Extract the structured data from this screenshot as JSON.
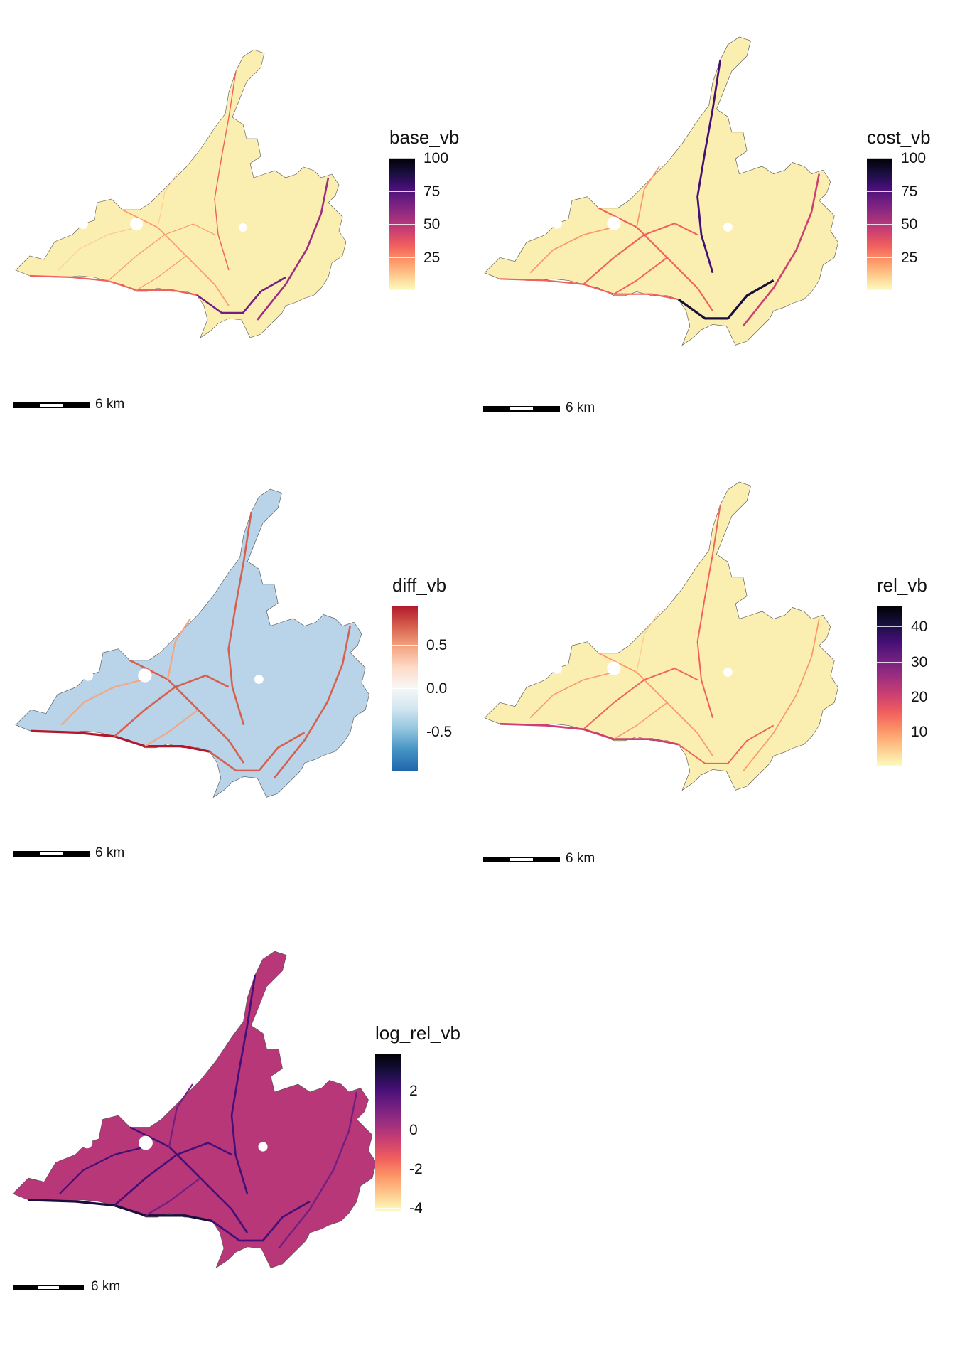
{
  "panels": [
    {
      "id": "base_vb",
      "legend": {
        "title": "base_vb",
        "scale": "magma",
        "ticks": [
          "100",
          "75",
          "50",
          "25"
        ],
        "tick_values": [
          100,
          75,
          50,
          25
        ],
        "range": [
          0,
          100
        ]
      },
      "scalebar_label": "6 km"
    },
    {
      "id": "cost_vb",
      "legend": {
        "title": "cost_vb",
        "scale": "magma",
        "ticks": [
          "100",
          "75",
          "50",
          "25"
        ],
        "tick_values": [
          100,
          75,
          50,
          25
        ],
        "range": [
          0,
          100
        ]
      },
      "scalebar_label": "6 km"
    },
    {
      "id": "diff_vb",
      "legend": {
        "title": "diff_vb",
        "scale": "RdBu",
        "ticks": [
          "0.5",
          "0.0",
          "-0.5"
        ],
        "tick_values": [
          0.5,
          0.0,
          -0.5
        ],
        "range": [
          -0.95,
          0.95
        ]
      },
      "scalebar_label": "6 km"
    },
    {
      "id": "rel_vb",
      "legend": {
        "title": "rel_vb",
        "scale": "magma",
        "ticks": [
          "40",
          "30",
          "20",
          "10"
        ],
        "tick_values": [
          40,
          30,
          20,
          10
        ],
        "range": [
          0,
          46
        ]
      },
      "scalebar_label": "6 km"
    },
    {
      "id": "log_rel_vb",
      "legend": {
        "title": "log_rel_vb",
        "scale": "magma",
        "ticks": [
          "2",
          "0",
          "-2",
          "-4"
        ],
        "tick_values": [
          2,
          0,
          -2,
          -4
        ],
        "range": [
          -4.2,
          3.9
        ]
      },
      "scalebar_label": "6 km"
    }
  ],
  "colors": {
    "magma": [
      "#fcfdbf",
      "#feca8d",
      "#fd9668",
      "#f1605d",
      "#cd4071",
      "#9e2f7f",
      "#721f81",
      "#440f76",
      "#180f3d",
      "#000004"
    ],
    "rdbu": [
      "#2166ac",
      "#4393c3",
      "#92c5de",
      "#d1e5f0",
      "#f7f7f7",
      "#fddbc7",
      "#f4a582",
      "#d6604d",
      "#b2182b"
    ],
    "pale_fill": "#faefb0",
    "outline": "#555555"
  }
}
